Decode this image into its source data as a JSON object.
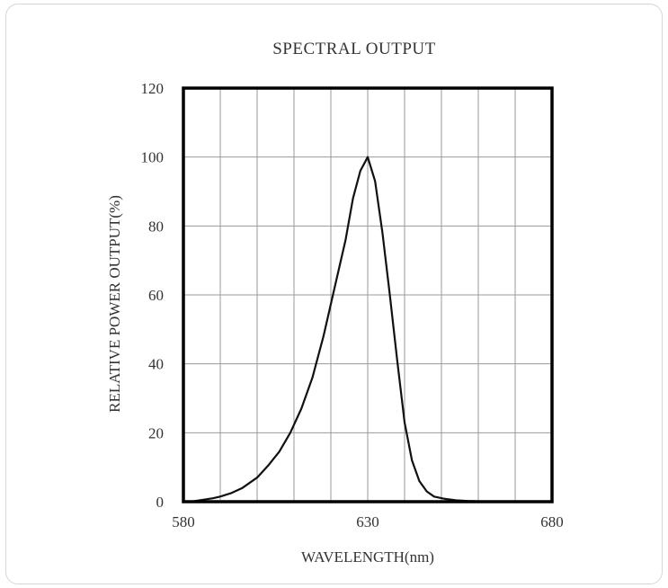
{
  "chart_data": {
    "type": "line",
    "title": "SPECTRAL OUTPUT",
    "xlabel": "WAVELENGTH(nm)",
    "ylabel": "RELATIVE POWER OUTPUT(%)",
    "xlim": [
      580,
      680
    ],
    "ylim": [
      0,
      120
    ],
    "xticks": [
      580,
      630,
      680
    ],
    "yticks": [
      0,
      20,
      40,
      60,
      80,
      100,
      120
    ],
    "x_gridlines": [
      580,
      590,
      600,
      610,
      620,
      630,
      640,
      650,
      660,
      670,
      680
    ],
    "grid": true,
    "series": [
      {
        "x": [
          582,
          585,
          588,
          590,
          593,
          596,
          600,
          603,
          606,
          609,
          612,
          615,
          618,
          621,
          624,
          626,
          628,
          630,
          632,
          634,
          636,
          638,
          640,
          642,
          644,
          646,
          648,
          651,
          654,
          657,
          660,
          664,
          668,
          670
        ],
        "y": [
          0,
          0.5,
          1,
          1.5,
          2.5,
          4,
          7,
          10.5,
          14.5,
          20,
          27,
          36,
          48,
          62,
          76,
          88,
          96,
          100,
          93,
          78,
          60,
          41,
          23,
          12,
          6,
          3,
          1.5,
          0.8,
          0.4,
          0.2,
          0.1,
          0,
          0,
          0
        ],
        "color": "#111111"
      }
    ]
  }
}
